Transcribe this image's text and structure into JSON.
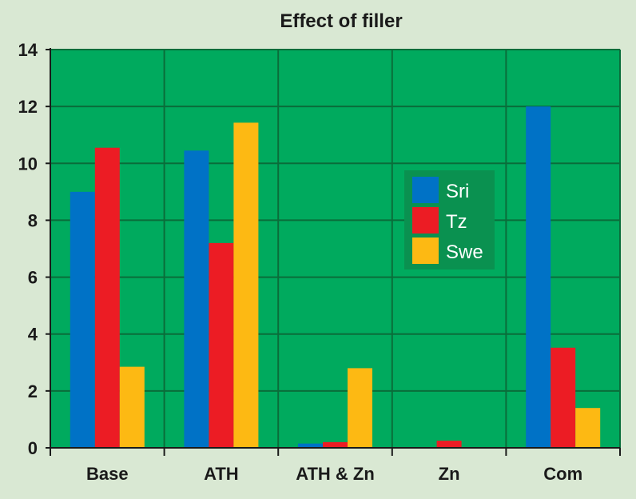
{
  "chart_data": {
    "type": "bar",
    "title": "Effect of filler",
    "xlabel": "",
    "ylabel": "",
    "ylim": [
      0,
      14
    ],
    "yticks": [
      0,
      2,
      4,
      6,
      8,
      10,
      12,
      14
    ],
    "grid": true,
    "legend_position": "right-center",
    "categories": [
      "Base",
      "ATH",
      "ATH & Zn",
      "Zn",
      "Com"
    ],
    "series": [
      {
        "name": "Sri",
        "color": "#0072c6",
        "values": [
          9.0,
          10.45,
          0.15,
          0,
          12.0
        ]
      },
      {
        "name": "Tz",
        "color": "#ec1c24",
        "values": [
          10.55,
          7.2,
          0.2,
          0.25,
          3.52
        ]
      },
      {
        "name": "Swe",
        "color": "#fdb913",
        "values": [
          2.85,
          11.43,
          2.8,
          0,
          1.4
        ]
      }
    ],
    "colors": {
      "plot_background": "#00aa5e",
      "grid": "#0a6d3a",
      "legend_background": "#0a9150"
    }
  }
}
